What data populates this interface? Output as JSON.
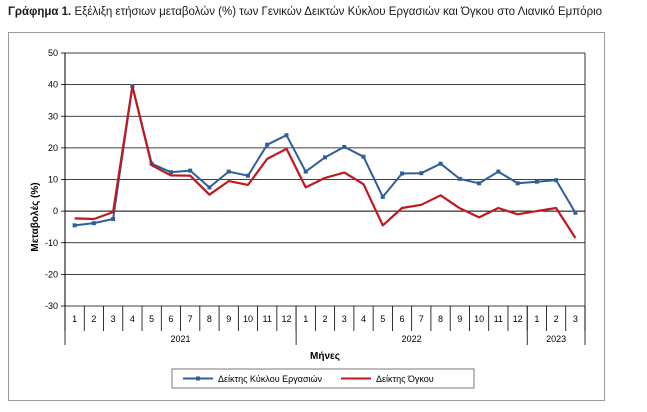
{
  "caption": {
    "label": "Γράφημα 1.",
    "text": "Εξέλιξη ετήσιων μεταβολών (%) των Γενικών Δεικτών Κύκλου Εργασιών και Όγκου στο Λιανικό Εμπόριο"
  },
  "chart_data": {
    "type": "line",
    "title": "",
    "xlabel": "Μήνες",
    "ylabel": "Μεταβολές (%)",
    "ylim": [
      -30,
      50
    ],
    "yticks": [
      -30,
      -20,
      -10,
      0,
      10,
      20,
      30,
      40,
      50
    ],
    "grid": true,
    "categories": [
      "1",
      "2",
      "3",
      "4",
      "5",
      "6",
      "7",
      "8",
      "9",
      "10",
      "11",
      "12",
      "1",
      "2",
      "3",
      "4",
      "5",
      "6",
      "7",
      "8",
      "9",
      "10",
      "11",
      "12",
      "1",
      "2",
      "3"
    ],
    "year_groups": [
      {
        "label": "2021",
        "count": 12
      },
      {
        "label": "2022",
        "count": 12
      },
      {
        "label": "2023",
        "count": 3
      }
    ],
    "series": [
      {
        "name": "Δείκτης Κύκλου Εργασιών",
        "color": "#2e5f9a",
        "values": [
          -4.5,
          -3.8,
          -2.5,
          39.5,
          15.0,
          12.3,
          12.8,
          7.5,
          12.5,
          11.2,
          21.0,
          24.0,
          12.5,
          17.0,
          20.3,
          17.2,
          4.5,
          11.9,
          12.0,
          15.0,
          10.2,
          8.8,
          12.5,
          8.8,
          9.3,
          9.8,
          -0.5
        ]
      },
      {
        "name": "Δείκτης Όγκου",
        "color": "#c0181f",
        "values": [
          -2.3,
          -2.5,
          -0.3,
          39.5,
          14.5,
          11.3,
          11.2,
          5.2,
          9.5,
          8.3,
          16.5,
          19.7,
          7.5,
          10.5,
          12.2,
          8.5,
          -4.5,
          1.0,
          2.0,
          5.0,
          0.9,
          -2.0,
          1.0,
          -1.0,
          0.0,
          1.0,
          -8.5
        ]
      }
    ],
    "legend_position": "bottom"
  }
}
